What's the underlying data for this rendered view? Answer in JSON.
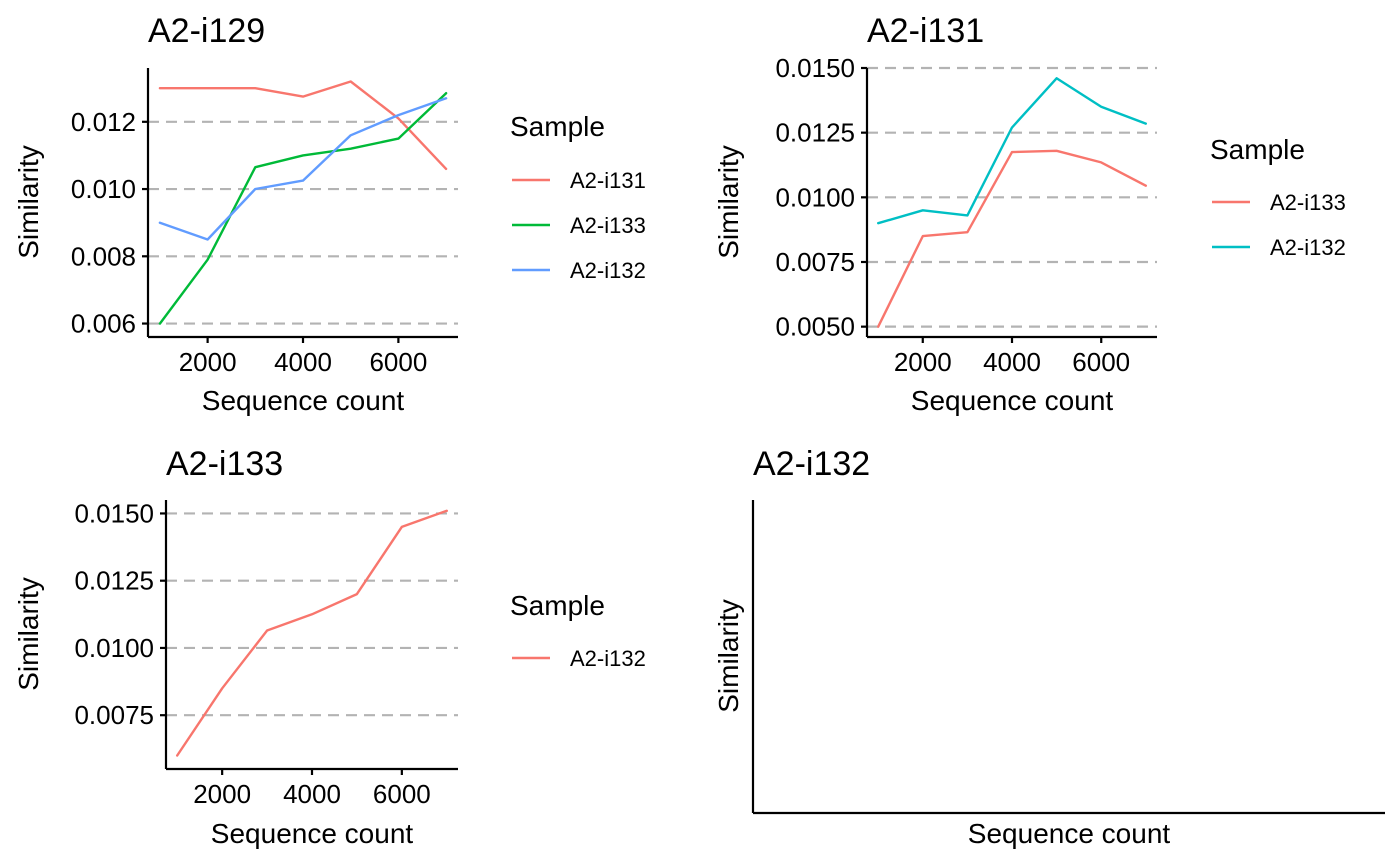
{
  "chart_data": [
    {
      "type": "line",
      "title": "A2-i129",
      "xlabel": "Sequence count",
      "ylabel": "Similarity",
      "xlim": [
        750,
        7250
      ],
      "ylim": [
        0.0056,
        0.0136
      ],
      "xticks": [
        2000,
        4000,
        6000
      ],
      "xtick_labels": [
        "2000",
        "4000",
        "6000"
      ],
      "yticks": [
        0.006,
        0.008,
        0.01,
        0.012
      ],
      "ytick_labels": [
        "0.006",
        "0.008",
        "0.010",
        "0.012"
      ],
      "grid": "horizontal dashed",
      "legend": {
        "title": "Sample",
        "placement": "right"
      },
      "series": [
        {
          "name": "A2-i131",
          "color": "#F8766D",
          "x": [
            1000,
            2000,
            3000,
            4000,
            5000,
            6000,
            7000
          ],
          "y": [
            0.013,
            0.013,
            0.013,
            0.01275,
            0.0132,
            0.0121,
            0.0106
          ]
        },
        {
          "name": "A2-i133",
          "color": "#00BA38",
          "x": [
            1000,
            2000,
            3000,
            4000,
            5000,
            6000,
            7000
          ],
          "y": [
            0.006,
            0.0079,
            0.01065,
            0.011,
            0.0112,
            0.0115,
            0.01285
          ]
        },
        {
          "name": "A2-i132",
          "color": "#619CFF",
          "x": [
            1000,
            2000,
            3000,
            4000,
            5000,
            6000,
            7000
          ],
          "y": [
            0.009,
            0.0085,
            0.01,
            0.01025,
            0.0116,
            0.0122,
            0.0127
          ]
        }
      ]
    },
    {
      "type": "line",
      "title": "A2-i131",
      "xlabel": "Sequence count",
      "ylabel": "Similarity",
      "xlim": [
        750,
        7250
      ],
      "ylim": [
        0.0046,
        0.015
      ],
      "xticks": [
        2000,
        4000,
        6000
      ],
      "xtick_labels": [
        "2000",
        "4000",
        "6000"
      ],
      "yticks": [
        0.005,
        0.0075,
        0.01,
        0.0125,
        0.015
      ],
      "ytick_labels": [
        "0.0050",
        "0.0075",
        "0.0100",
        "0.0125",
        "0.0150"
      ],
      "grid": "horizontal dashed",
      "legend": {
        "title": "Sample",
        "placement": "right"
      },
      "series": [
        {
          "name": "A2-i133",
          "color": "#F8766D",
          "x": [
            1000,
            2000,
            3000,
            4000,
            5000,
            6000,
            7000
          ],
          "y": [
            0.005,
            0.0085,
            0.00865,
            0.01175,
            0.0118,
            0.01135,
            0.01045
          ]
        },
        {
          "name": "A2-i132",
          "color": "#00BFC4",
          "x": [
            1000,
            2000,
            3000,
            4000,
            5000,
            6000,
            7000
          ],
          "y": [
            0.009,
            0.0095,
            0.0093,
            0.0127,
            0.0146,
            0.0135,
            0.01285
          ]
        }
      ]
    },
    {
      "type": "line",
      "title": "A2-i133",
      "xlabel": "Sequence count",
      "ylabel": "Similarity",
      "xlim": [
        750,
        7250
      ],
      "ylim": [
        0.0055,
        0.0155
      ],
      "xticks": [
        2000,
        4000,
        6000
      ],
      "xtick_labels": [
        "2000",
        "4000",
        "6000"
      ],
      "yticks": [
        0.0075,
        0.01,
        0.0125,
        0.015
      ],
      "ytick_labels": [
        "0.0075",
        "0.0100",
        "0.0125",
        "0.0150"
      ],
      "grid": "horizontal dashed",
      "legend": {
        "title": "Sample",
        "placement": "right"
      },
      "series": [
        {
          "name": "A2-i132",
          "color": "#F8766D",
          "x": [
            1000,
            2000,
            3000,
            4000,
            5000,
            6000,
            7000
          ],
          "y": [
            0.006,
            0.0085,
            0.01065,
            0.01125,
            0.012,
            0.0145,
            0.0151
          ]
        }
      ]
    },
    {
      "type": "line",
      "title": "A2-i132",
      "xlabel": "Sequence count",
      "ylabel": "Similarity",
      "series": []
    }
  ]
}
